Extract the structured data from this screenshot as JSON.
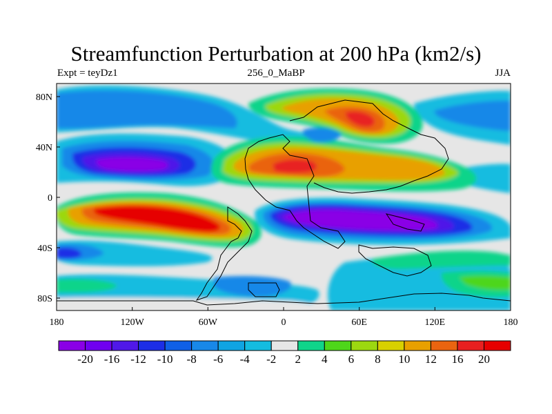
{
  "title": "Streamfunction Perturbation at 200 hPa (km2/s)",
  "subtitle_left": "Expt = teyDz1",
  "subtitle_center": "256_0_MaBP",
  "subtitle_right": "JJA",
  "x_axis_labels": [
    "180",
    "120W",
    "60W",
    "0",
    "60E",
    "120E",
    "180"
  ],
  "y_axis_labels": [
    "80N",
    "40N",
    "0",
    "40S",
    "80S"
  ],
  "colorbar": {
    "labels": [
      "-20",
      "-16",
      "-12",
      "-10",
      "-8",
      "-6",
      "-4",
      "-2",
      "2",
      "4",
      "6",
      "8",
      "10",
      "12",
      "16",
      "20"
    ],
    "colors": [
      "#8a00e6",
      "#7000f0",
      "#5018e8",
      "#1c2ee6",
      "#1060e6",
      "#1888e8",
      "#10a4e2",
      "#14bce0",
      "#e6e6e6",
      "#10d48a",
      "#4ed61a",
      "#9cd810",
      "#d8d000",
      "#e8a000",
      "#ea6410",
      "#e82020",
      "#e60000"
    ]
  },
  "plot_colors": {
    "neutral": "#e6e6e6",
    "purple": "#8a00e6",
    "blue_dark": "#1c2ee6",
    "blue": "#1888e8",
    "cyan": "#14bce0",
    "green": "#10d48a",
    "lime": "#9cd810",
    "yellow": "#d8d000",
    "orange": "#e8a000",
    "orange_red": "#ea6410",
    "red": "#e60000"
  }
}
